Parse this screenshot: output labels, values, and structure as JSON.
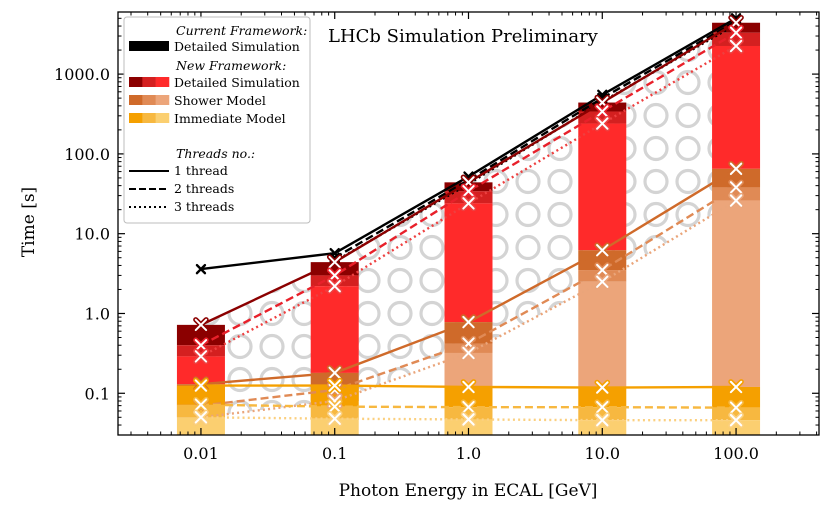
{
  "chart_data": {
    "type": "bar",
    "title": "LHCb Simulation Preliminary",
    "xlabel": "Photon Energy in ECAL   [GeV]",
    "ylabel": "Time   [s]",
    "xscale": "log",
    "yscale": "log",
    "ylim": [
      0.03,
      6000
    ],
    "categories": [
      "0.01",
      "0.1",
      "1.0",
      "10.0",
      "100.0"
    ],
    "x": [
      0.01,
      0.1,
      1.0,
      10.0,
      100.0
    ],
    "y_ticks": [
      "0.1",
      "1.0",
      "10.0",
      "100.0",
      "1000.0"
    ],
    "y_tick_values": [
      0.1,
      1,
      10,
      100,
      1000
    ],
    "stacked_bars": [
      {
        "name": "New Framework: Detailed Simulation",
        "values_1_thread": [
          0.72,
          4.4,
          44,
          440,
          4400
        ],
        "values_2_threads": [
          0.4,
          3.0,
          34,
          340,
          3300
        ],
        "values_3_threads": [
          0.29,
          2.2,
          24,
          240,
          2250
        ]
      },
      {
        "name": "New Framework: Shower Model",
        "values_1_thread": [
          0.13,
          0.18,
          0.78,
          6.2,
          65
        ],
        "values_2_threads": [
          0.07,
          0.11,
          0.42,
          3.5,
          38
        ],
        "values_3_threads": [
          0.05,
          0.08,
          0.32,
          2.5,
          26
        ]
      },
      {
        "name": "New Framework: Immediate Model",
        "values_1_thread": [
          0.125,
          0.125,
          0.12,
          0.118,
          0.12
        ],
        "values_2_threads": [
          0.072,
          0.068,
          0.067,
          0.067,
          0.066
        ],
        "values_3_threads": [
          0.05,
          0.048,
          0.047,
          0.046,
          0.046
        ]
      }
    ],
    "series": [
      {
        "name": "Current Framework: Detailed Simulation, 1 thread",
        "color": "#000000",
        "style": "solid",
        "values": [
          3.6,
          5.7,
          52,
          550,
          5000
        ]
      },
      {
        "name": "Current Framework: Detailed Simulation, 2 threads",
        "color": "#000000",
        "style": "dashed",
        "values": [
          null,
          5.0,
          47,
          500,
          4600
        ]
      },
      {
        "name": "Current Framework: Detailed Simulation, 3 threads",
        "color": "#000000",
        "style": "dotted",
        "values": [
          null,
          4.5,
          42,
          450,
          4200
        ]
      },
      {
        "name": "New Framework: Detailed Simulation, 1 thread",
        "color": "#8b0000",
        "style": "solid",
        "values": [
          0.72,
          4.4,
          44,
          440,
          4400
        ]
      },
      {
        "name": "New Framework: Detailed Simulation, 2 threads",
        "color": "#e8202a",
        "style": "dashed",
        "values": [
          0.4,
          3.0,
          34,
          340,
          3300
        ]
      },
      {
        "name": "New Framework: Detailed Simulation, 3 threads",
        "color": "#ee4040",
        "style": "dotted",
        "values": [
          0.29,
          2.2,
          24,
          240,
          2250
        ]
      },
      {
        "name": "Shower Model, 1 thread",
        "color": "#cf6a2a",
        "style": "solid",
        "values": [
          0.13,
          0.18,
          0.78,
          6.2,
          65
        ]
      },
      {
        "name": "Shower Model, 2 threads",
        "color": "#e08a55",
        "style": "dashed",
        "values": [
          0.07,
          0.11,
          0.42,
          3.5,
          38
        ]
      },
      {
        "name": "Shower Model, 3 threads",
        "color": "#eaa57a",
        "style": "dotted",
        "values": [
          0.05,
          0.08,
          0.32,
          2.5,
          26
        ]
      },
      {
        "name": "Immediate Model, 1 thread",
        "color": "#f5a000",
        "style": "solid",
        "values": [
          0.125,
          0.125,
          0.12,
          0.118,
          0.12
        ]
      },
      {
        "name": "Immediate Model, 2 threads",
        "color": "#f7b840",
        "style": "dashed",
        "values": [
          0.072,
          0.068,
          0.067,
          0.067,
          0.066
        ]
      },
      {
        "name": "Immediate Model, 3 threads",
        "color": "#fbd080",
        "style": "dotted",
        "values": [
          0.05,
          0.048,
          0.047,
          0.046,
          0.046
        ]
      }
    ],
    "legend": {
      "position": "top-left",
      "current_header": "Current Framework:",
      "current_items": [
        {
          "label": "Detailed Simulation",
          "colors": [
            "#000000"
          ]
        }
      ],
      "new_header": "New Framework:",
      "new_items": [
        {
          "label": "Detailed Simulation",
          "colors": [
            "#8b0000",
            "#d42020",
            "#ff2a2a"
          ]
        },
        {
          "label": "Shower Model",
          "colors": [
            "#cf6a2a",
            "#e08a55",
            "#eca57a"
          ]
        },
        {
          "label": "Immediate Model",
          "colors": [
            "#f5a000",
            "#f7b840",
            "#fbcf70"
          ]
        }
      ],
      "threads_header": "Threads no.:",
      "thread_items": [
        {
          "label": "1 thread",
          "style": "solid"
        },
        {
          "label": "2 threads",
          "style": "dashed"
        },
        {
          "label": "3 threads",
          "style": "dotted"
        }
      ]
    }
  }
}
